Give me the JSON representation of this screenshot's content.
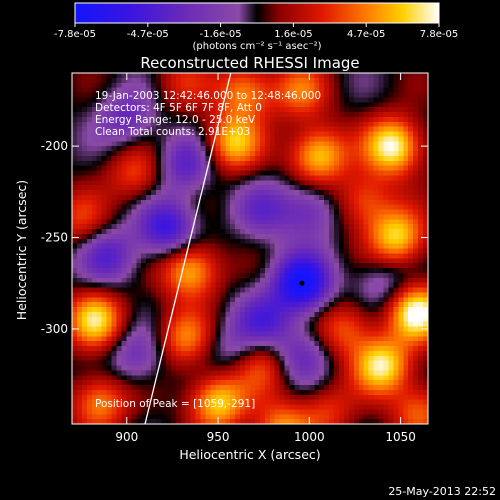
{
  "chart_data": {
    "type": "heatmap",
    "title": "Reconstructed RHESSI Image",
    "xlabel": "Heliocentric X (arcsec)",
    "ylabel": "Heliocentric Y (arcsec)",
    "xlim": [
      870,
      1065
    ],
    "ylim": [
      -352,
      -160
    ],
    "x_ticks": [
      "900",
      "950",
      "1000",
      "1050"
    ],
    "x_tick_values": [
      900,
      950,
      1000,
      1050
    ],
    "y_ticks": [
      "-200",
      "-250",
      "-300"
    ],
    "y_tick_values": [
      -200,
      -250,
      -300
    ],
    "colorbar": {
      "ticks": [
        "-7.8e-05",
        "-4.7e-05",
        "-1.6e-05",
        "1.6e-05",
        "4.7e-05",
        "7.8e-05"
      ],
      "units": "(photons cm⁻² s⁻¹ asec⁻²)",
      "vmin": -7.8e-05,
      "vmax": 7.8e-05
    },
    "annotations": [
      "19-Jan-2003 12:42:46.000 to 12:48:46.000",
      "Detectors: 4F 5F 6F 7F 8F, Att 0",
      "Energy Range: 12.0 - 25.0 keV",
      "Clean    Total counts: 2.91E+03"
    ],
    "peak_label": "Position of Peak = [1059,-291]",
    "peak": [
      1059,
      -291
    ],
    "limb_line": [
      [
        910,
        -352
      ],
      [
        957,
        -160
      ]
    ],
    "min_marker": [
      996,
      -275
    ],
    "sources": [
      {
        "x": 1046,
        "y": -200,
        "value": 7.8e-05
      },
      {
        "x": 1048,
        "y": -250,
        "value": 6.5e-05
      },
      {
        "x": 1059,
        "y": -291,
        "value": 7.8e-05
      },
      {
        "x": 1040,
        "y": -320,
        "value": 7e-05
      },
      {
        "x": 1005,
        "y": -205,
        "value": 6.5e-05
      },
      {
        "x": 958,
        "y": -198,
        "value": 6e-05
      },
      {
        "x": 965,
        "y": -170,
        "value": 5e-05
      },
      {
        "x": 935,
        "y": -268,
        "value": 6.2e-05
      },
      {
        "x": 883,
        "y": -295,
        "value": 6.5e-05
      },
      {
        "x": 885,
        "y": -340,
        "value": 5e-05
      },
      {
        "x": 950,
        "y": -340,
        "value": 6.5e-05
      },
      {
        "x": 985,
        "y": -355,
        "value": 5e-05
      },
      {
        "x": 1020,
        "y": -300,
        "value": 4e-05
      },
      {
        "x": 1030,
        "y": -230,
        "value": 4e-05
      },
      {
        "x": 905,
        "y": -215,
        "value": 3.5e-05
      },
      {
        "x": 932,
        "y": -305,
        "value": 4.5e-05
      },
      {
        "x": 975,
        "y": -320,
        "value": 3.5e-05
      },
      {
        "x": 1010,
        "y": -345,
        "value": 3e-05
      },
      {
        "x": 1060,
        "y": -345,
        "value": 4e-05
      },
      {
        "x": 875,
        "y": -240,
        "value": 3e-05
      },
      {
        "x": 930,
        "y": -165,
        "value": 2.5e-05
      },
      {
        "x": 995,
        "y": -170,
        "value": 4e-05
      },
      {
        "x": 996,
        "y": -275,
        "value": -7.8e-05
      },
      {
        "x": 922,
        "y": -245,
        "value": -5.5e-05
      },
      {
        "x": 932,
        "y": -210,
        "value": -4e-05
      },
      {
        "x": 890,
        "y": -260,
        "value": -4e-05
      },
      {
        "x": 900,
        "y": -185,
        "value": -3.5e-05
      },
      {
        "x": 975,
        "y": -235,
        "value": -3e-05
      },
      {
        "x": 1000,
        "y": -235,
        "value": -3.5e-05
      },
      {
        "x": 975,
        "y": -295,
        "value": -4e-05
      },
      {
        "x": 995,
        "y": -315,
        "value": -3.5e-05
      },
      {
        "x": 905,
        "y": -315,
        "value": -3e-05
      },
      {
        "x": 1040,
        "y": -275,
        "value": -2.5e-05
      },
      {
        "x": 955,
        "y": -310,
        "value": -2e-05
      }
    ]
  },
  "footer": {
    "date": "25-May-2013 22:52"
  }
}
